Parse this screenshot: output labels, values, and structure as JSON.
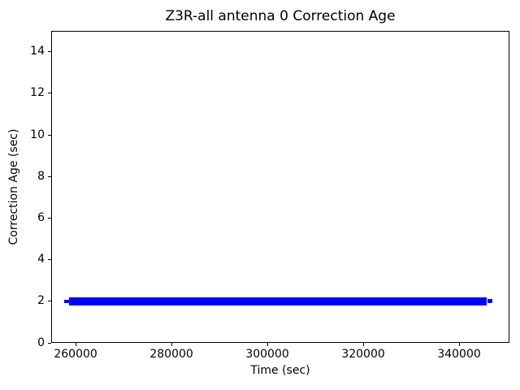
{
  "figure": {
    "background": "#ffffff",
    "text_color": "#000000",
    "spine_color": "#000000"
  },
  "chart_data": {
    "type": "line",
    "title": "Z3R-all antenna 0 Correction Age",
    "xlabel": "Time (sec)",
    "ylabel": "Correction Age (sec)",
    "xlim": [
      254900,
      350500
    ],
    "ylim": [
      0,
      15
    ],
    "xticks": [
      260000,
      280000,
      300000,
      320000,
      340000
    ],
    "yticks": [
      0,
      2,
      4,
      6,
      8,
      10,
      12,
      14
    ],
    "grid": false,
    "legend": "none",
    "series": [
      {
        "name": "antenna 0 correction age",
        "color": "#0000ff",
        "marker": "+",
        "render_style": "dense plus-markers forming a solid horizontal band",
        "constant_y": 2,
        "x_start": 258200,
        "x_end": 346500,
        "band_x_start": 258700,
        "band_x_end": 345800,
        "band_y_low": 1.8,
        "band_y_high": 2.2
      }
    ]
  }
}
